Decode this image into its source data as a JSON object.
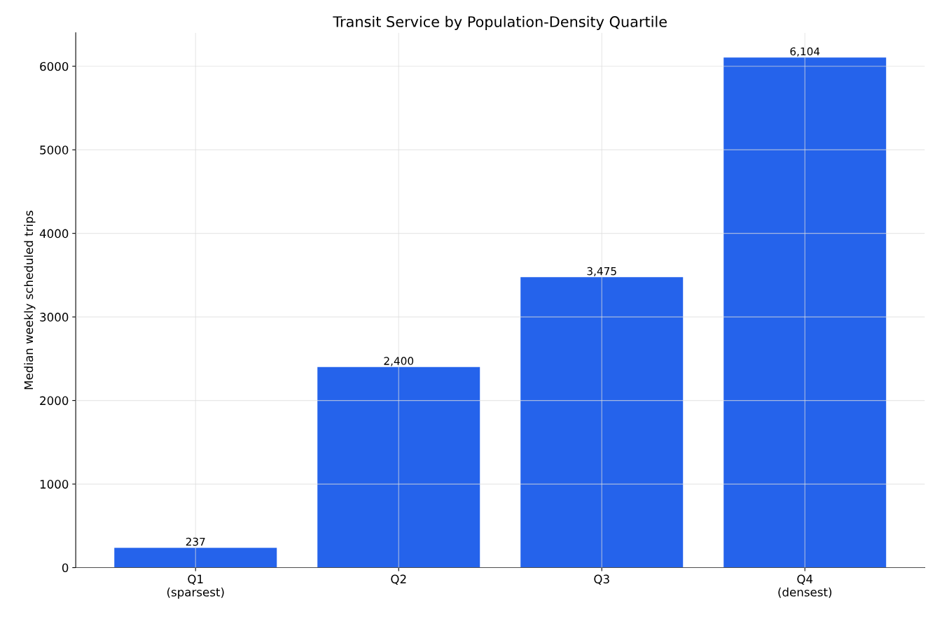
{
  "chart_data": {
    "type": "bar",
    "title": "Transit Service by Population-Density Quartile",
    "ylabel": "Median weekly scheduled trips",
    "categories": [
      "Q1\n(sparsest)",
      "Q2",
      "Q3",
      "Q4\n(densest)"
    ],
    "values": [
      237,
      2400,
      3475,
      6104
    ],
    "color": "#2563eb",
    "value_labels": [
      "237",
      "2,400",
      "3,475",
      "6,104"
    ],
    "ylim": [
      0,
      6400
    ],
    "yticks": [
      0,
      1000,
      2000,
      3000,
      4000,
      5000,
      6000
    ],
    "grid": true
  }
}
